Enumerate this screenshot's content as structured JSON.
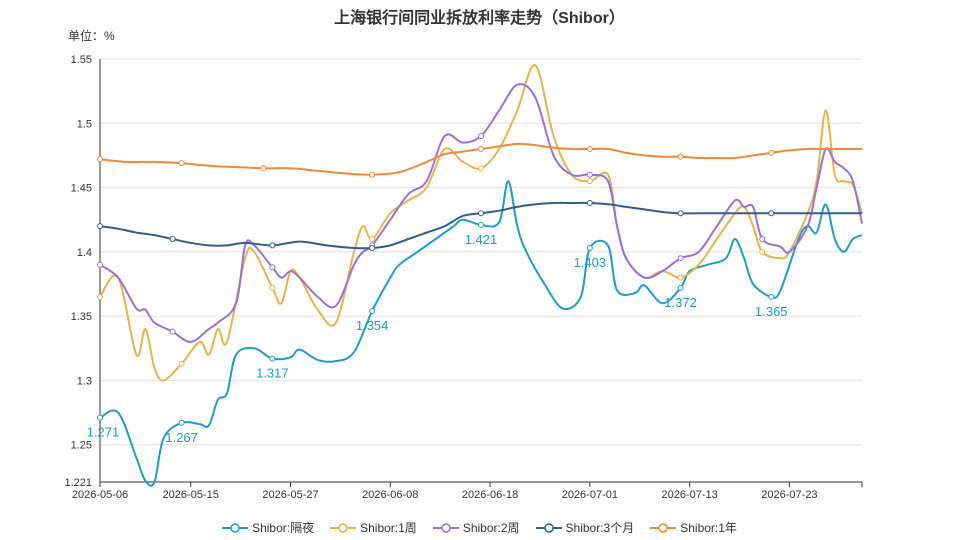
{
  "chart_data": {
    "type": "line",
    "title": "上海银行间同业拆放利率走势（Shibor）",
    "unit_label": "单位：%",
    "x_ticks": [
      "2026-05-06",
      "2026-05-15",
      "2026-05-27",
      "2026-06-08",
      "2026-06-18",
      "2026-07-01",
      "2026-07-13",
      "2026-07-23"
    ],
    "y_ticks": [
      "1.221",
      "1.25",
      "1.3",
      "1.35",
      "1.4",
      "1.45",
      "1.5",
      "1.55"
    ],
    "ylim": [
      1.221,
      1.55
    ],
    "grid": true,
    "legend_position": "bottom",
    "series": [
      {
        "name": "Shibor:隔夜",
        "color": "#1f9cc9",
        "points": [
          [
            0,
            1.271
          ],
          [
            2,
            1.275
          ],
          [
            4,
            1.24
          ],
          [
            5,
            1.222
          ],
          [
            6,
            1.221
          ],
          [
            7,
            1.255
          ],
          [
            9,
            1.267
          ],
          [
            11,
            1.266
          ],
          [
            12,
            1.265
          ],
          [
            13,
            1.285
          ],
          [
            14,
            1.29
          ],
          [
            15,
            1.32
          ],
          [
            17,
            1.325
          ],
          [
            19,
            1.317
          ],
          [
            21,
            1.318
          ],
          [
            22,
            1.324
          ],
          [
            24,
            1.316
          ],
          [
            26,
            1.315
          ],
          [
            28,
            1.322
          ],
          [
            30,
            1.354
          ],
          [
            32,
            1.38
          ],
          [
            33,
            1.39
          ],
          [
            35,
            1.4
          ],
          [
            37,
            1.41
          ],
          [
            39,
            1.42
          ],
          [
            40,
            1.425
          ],
          [
            42,
            1.421
          ],
          [
            44,
            1.423
          ],
          [
            45,
            1.455
          ],
          [
            46,
            1.42
          ],
          [
            47,
            1.4
          ],
          [
            49,
            1.375
          ],
          [
            51,
            1.356
          ],
          [
            53,
            1.365
          ],
          [
            54,
            1.403
          ],
          [
            56,
            1.405
          ],
          [
            57,
            1.37
          ],
          [
            59,
            1.368
          ],
          [
            60,
            1.374
          ],
          [
            62,
            1.36
          ],
          [
            64,
            1.372
          ],
          [
            65,
            1.385
          ],
          [
            67,
            1.39
          ],
          [
            69,
            1.395
          ],
          [
            70,
            1.41
          ],
          [
            71,
            1.395
          ],
          [
            72,
            1.375
          ],
          [
            74,
            1.365
          ],
          [
            75,
            1.37
          ],
          [
            77,
            1.41
          ],
          [
            78,
            1.42
          ],
          [
            79,
            1.415
          ],
          [
            80,
            1.437
          ],
          [
            81,
            1.41
          ],
          [
            82,
            1.4
          ],
          [
            83,
            1.41
          ],
          [
            84,
            1.413
          ]
        ],
        "labels": [
          [
            0,
            1.271
          ],
          [
            9,
            1.267
          ],
          [
            19,
            1.317
          ],
          [
            30,
            1.354
          ],
          [
            42,
            1.421
          ],
          [
            54,
            1.403
          ],
          [
            64,
            1.372
          ],
          [
            74,
            1.365
          ]
        ]
      },
      {
        "name": "Shibor:1周",
        "color": "#e6b34d",
        "points": [
          [
            0,
            1.365
          ],
          [
            2,
            1.38
          ],
          [
            4,
            1.32
          ],
          [
            5,
            1.34
          ],
          [
            6,
            1.31
          ],
          [
            7,
            1.3
          ],
          [
            9,
            1.313
          ],
          [
            11,
            1.33
          ],
          [
            12,
            1.32
          ],
          [
            13,
            1.34
          ],
          [
            14,
            1.33
          ],
          [
            16,
            1.395
          ],
          [
            17,
            1.4
          ],
          [
            19,
            1.372
          ],
          [
            20,
            1.36
          ],
          [
            21,
            1.385
          ],
          [
            22,
            1.38
          ],
          [
            24,
            1.355
          ],
          [
            26,
            1.345
          ],
          [
            28,
            1.4
          ],
          [
            29,
            1.42
          ],
          [
            30,
            1.41
          ],
          [
            32,
            1.43
          ],
          [
            34,
            1.44
          ],
          [
            36,
            1.45
          ],
          [
            38,
            1.48
          ],
          [
            40,
            1.47
          ],
          [
            42,
            1.465
          ],
          [
            44,
            1.48
          ],
          [
            46,
            1.51
          ],
          [
            48,
            1.545
          ],
          [
            50,
            1.49
          ],
          [
            52,
            1.46
          ],
          [
            54,
            1.455
          ],
          [
            56,
            1.46
          ],
          [
            57,
            1.42
          ],
          [
            58,
            1.395
          ],
          [
            60,
            1.38
          ],
          [
            62,
            1.385
          ],
          [
            64,
            1.38
          ],
          [
            66,
            1.39
          ],
          [
            68,
            1.41
          ],
          [
            70,
            1.43
          ],
          [
            71,
            1.435
          ],
          [
            72,
            1.42
          ],
          [
            73,
            1.4
          ],
          [
            75,
            1.395
          ],
          [
            76,
            1.4
          ],
          [
            78,
            1.43
          ],
          [
            79,
            1.455
          ],
          [
            80,
            1.51
          ],
          [
            81,
            1.46
          ],
          [
            82,
            1.455
          ],
          [
            83,
            1.452
          ],
          [
            84,
            1.43
          ]
        ]
      },
      {
        "name": "Shibor:2周",
        "color": "#9b6fd8",
        "points": [
          [
            0,
            1.39
          ],
          [
            2,
            1.38
          ],
          [
            4,
            1.356
          ],
          [
            5,
            1.355
          ],
          [
            6,
            1.345
          ],
          [
            8,
            1.338
          ],
          [
            10,
            1.33
          ],
          [
            12,
            1.34
          ],
          [
            13,
            1.345
          ],
          [
            15,
            1.36
          ],
          [
            16,
            1.405
          ],
          [
            17,
            1.405
          ],
          [
            19,
            1.388
          ],
          [
            20,
            1.38
          ],
          [
            21,
            1.385
          ],
          [
            22,
            1.38
          ],
          [
            24,
            1.365
          ],
          [
            26,
            1.358
          ],
          [
            28,
            1.39
          ],
          [
            29,
            1.4
          ],
          [
            30,
            1.405
          ],
          [
            32,
            1.425
          ],
          [
            34,
            1.445
          ],
          [
            36,
            1.455
          ],
          [
            38,
            1.49
          ],
          [
            40,
            1.485
          ],
          [
            42,
            1.49
          ],
          [
            44,
            1.51
          ],
          [
            46,
            1.53
          ],
          [
            48,
            1.52
          ],
          [
            50,
            1.475
          ],
          [
            52,
            1.46
          ],
          [
            54,
            1.46
          ],
          [
            56,
            1.455
          ],
          [
            57,
            1.42
          ],
          [
            58,
            1.395
          ],
          [
            60,
            1.38
          ],
          [
            62,
            1.385
          ],
          [
            64,
            1.395
          ],
          [
            66,
            1.4
          ],
          [
            68,
            1.42
          ],
          [
            70,
            1.44
          ],
          [
            71,
            1.435
          ],
          [
            72,
            1.435
          ],
          [
            73,
            1.41
          ],
          [
            75,
            1.404
          ],
          [
            76,
            1.4
          ],
          [
            78,
            1.42
          ],
          [
            79,
            1.45
          ],
          [
            80,
            1.48
          ],
          [
            81,
            1.47
          ],
          [
            82,
            1.465
          ],
          [
            83,
            1.455
          ],
          [
            84,
            1.422
          ]
        ]
      },
      {
        "name": "Shibor:3个月",
        "color": "#2f5f8a",
        "points": [
          [
            0,
            1.42
          ],
          [
            2,
            1.418
          ],
          [
            4,
            1.415
          ],
          [
            6,
            1.413
          ],
          [
            8,
            1.41
          ],
          [
            10,
            1.407
          ],
          [
            12,
            1.405
          ],
          [
            14,
            1.405
          ],
          [
            16,
            1.407
          ],
          [
            19,
            1.405
          ],
          [
            22,
            1.408
          ],
          [
            25,
            1.405
          ],
          [
            28,
            1.403
          ],
          [
            30,
            1.403
          ],
          [
            32,
            1.405
          ],
          [
            34,
            1.41
          ],
          [
            36,
            1.415
          ],
          [
            38,
            1.42
          ],
          [
            40,
            1.428
          ],
          [
            42,
            1.43
          ],
          [
            44,
            1.432
          ],
          [
            46,
            1.435
          ],
          [
            48,
            1.437
          ],
          [
            50,
            1.438
          ],
          [
            52,
            1.438
          ],
          [
            54,
            1.438
          ],
          [
            56,
            1.437
          ],
          [
            58,
            1.435
          ],
          [
            60,
            1.433
          ],
          [
            62,
            1.431
          ],
          [
            64,
            1.43
          ],
          [
            66,
            1.43
          ],
          [
            68,
            1.43
          ],
          [
            70,
            1.43
          ],
          [
            72,
            1.43
          ],
          [
            74,
            1.43
          ],
          [
            76,
            1.43
          ],
          [
            78,
            1.43
          ],
          [
            80,
            1.43
          ],
          [
            82,
            1.43
          ],
          [
            84,
            1.43
          ]
        ]
      },
      {
        "name": "Shibor:1年",
        "color": "#ee8a3a",
        "points": [
          [
            0,
            1.472
          ],
          [
            3,
            1.47
          ],
          [
            6,
            1.47
          ],
          [
            9,
            1.469
          ],
          [
            12,
            1.467
          ],
          [
            15,
            1.466
          ],
          [
            18,
            1.465
          ],
          [
            21,
            1.465
          ],
          [
            24,
            1.463
          ],
          [
            27,
            1.461
          ],
          [
            30,
            1.46
          ],
          [
            33,
            1.462
          ],
          [
            36,
            1.47
          ],
          [
            38,
            1.476
          ],
          [
            40,
            1.478
          ],
          [
            42,
            1.48
          ],
          [
            44,
            1.482
          ],
          [
            46,
            1.484
          ],
          [
            48,
            1.483
          ],
          [
            50,
            1.481
          ],
          [
            52,
            1.48
          ],
          [
            54,
            1.48
          ],
          [
            56,
            1.48
          ],
          [
            58,
            1.477
          ],
          [
            60,
            1.475
          ],
          [
            62,
            1.474
          ],
          [
            64,
            1.474
          ],
          [
            66,
            1.473
          ],
          [
            68,
            1.473
          ],
          [
            70,
            1.473
          ],
          [
            72,
            1.475
          ],
          [
            74,
            1.477
          ],
          [
            76,
            1.479
          ],
          [
            78,
            1.48
          ],
          [
            80,
            1.48
          ],
          [
            82,
            1.48
          ],
          [
            84,
            1.48
          ]
        ]
      }
    ]
  }
}
